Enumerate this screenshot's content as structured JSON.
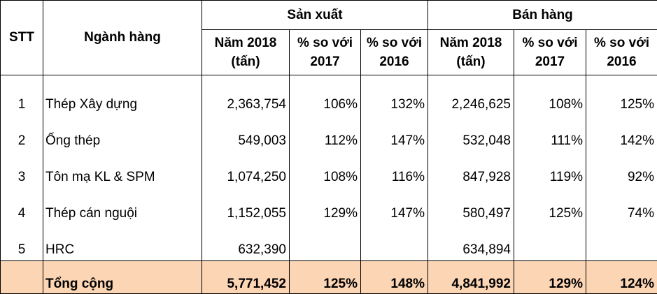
{
  "headers": {
    "stt": "STT",
    "nganh_hang": "Ngành hàng",
    "san_xuat": "Sản xuất",
    "ban_hang": "Bán hàng",
    "nam_2018_line1": "Năm 2018",
    "nam_2018_line2": "(tấn)",
    "so_voi_line1": "% so với",
    "y2017": "2017",
    "y2016": "2016"
  },
  "rows": [
    {
      "stt": "1",
      "name": "Thép Xây dựng",
      "sx_2018": "2,363,754",
      "sx_vs2017": "106%",
      "sx_vs2016": "132%",
      "bh_2018": "2,246,625",
      "bh_vs2017": "108%",
      "bh_vs2016": "125%"
    },
    {
      "stt": "2",
      "name": "Ống thép",
      "sx_2018": "549,003",
      "sx_vs2017": "112%",
      "sx_vs2016": "147%",
      "bh_2018": "532,048",
      "bh_vs2017": "111%",
      "bh_vs2016": "142%"
    },
    {
      "stt": "3",
      "name": "Tôn mạ KL & SPM",
      "sx_2018": "1,074,250",
      "sx_vs2017": "108%",
      "sx_vs2016": "116%",
      "bh_2018": "847,928",
      "bh_vs2017": "119%",
      "bh_vs2016": "92%"
    },
    {
      "stt": "4",
      "name": "Thép cán nguội",
      "sx_2018": "1,152,055",
      "sx_vs2017": "129%",
      "sx_vs2016": "147%",
      "bh_2018": "580,497",
      "bh_vs2017": "125%",
      "bh_vs2016": "74%"
    },
    {
      "stt": "5",
      "name": "HRC",
      "sx_2018": "632,390",
      "sx_vs2017": "",
      "sx_vs2016": "",
      "bh_2018": "634,894",
      "bh_vs2017": "",
      "bh_vs2016": ""
    }
  ],
  "total": {
    "name": "Tổng cộng",
    "sx_2018": "5,771,452",
    "sx_vs2017": "125%",
    "sx_vs2016": "148%",
    "bh_2018": "4,841,992",
    "bh_vs2017": "129%",
    "bh_vs2016": "124%"
  },
  "colors": {
    "total_row_bg": "#fcd5b4"
  }
}
